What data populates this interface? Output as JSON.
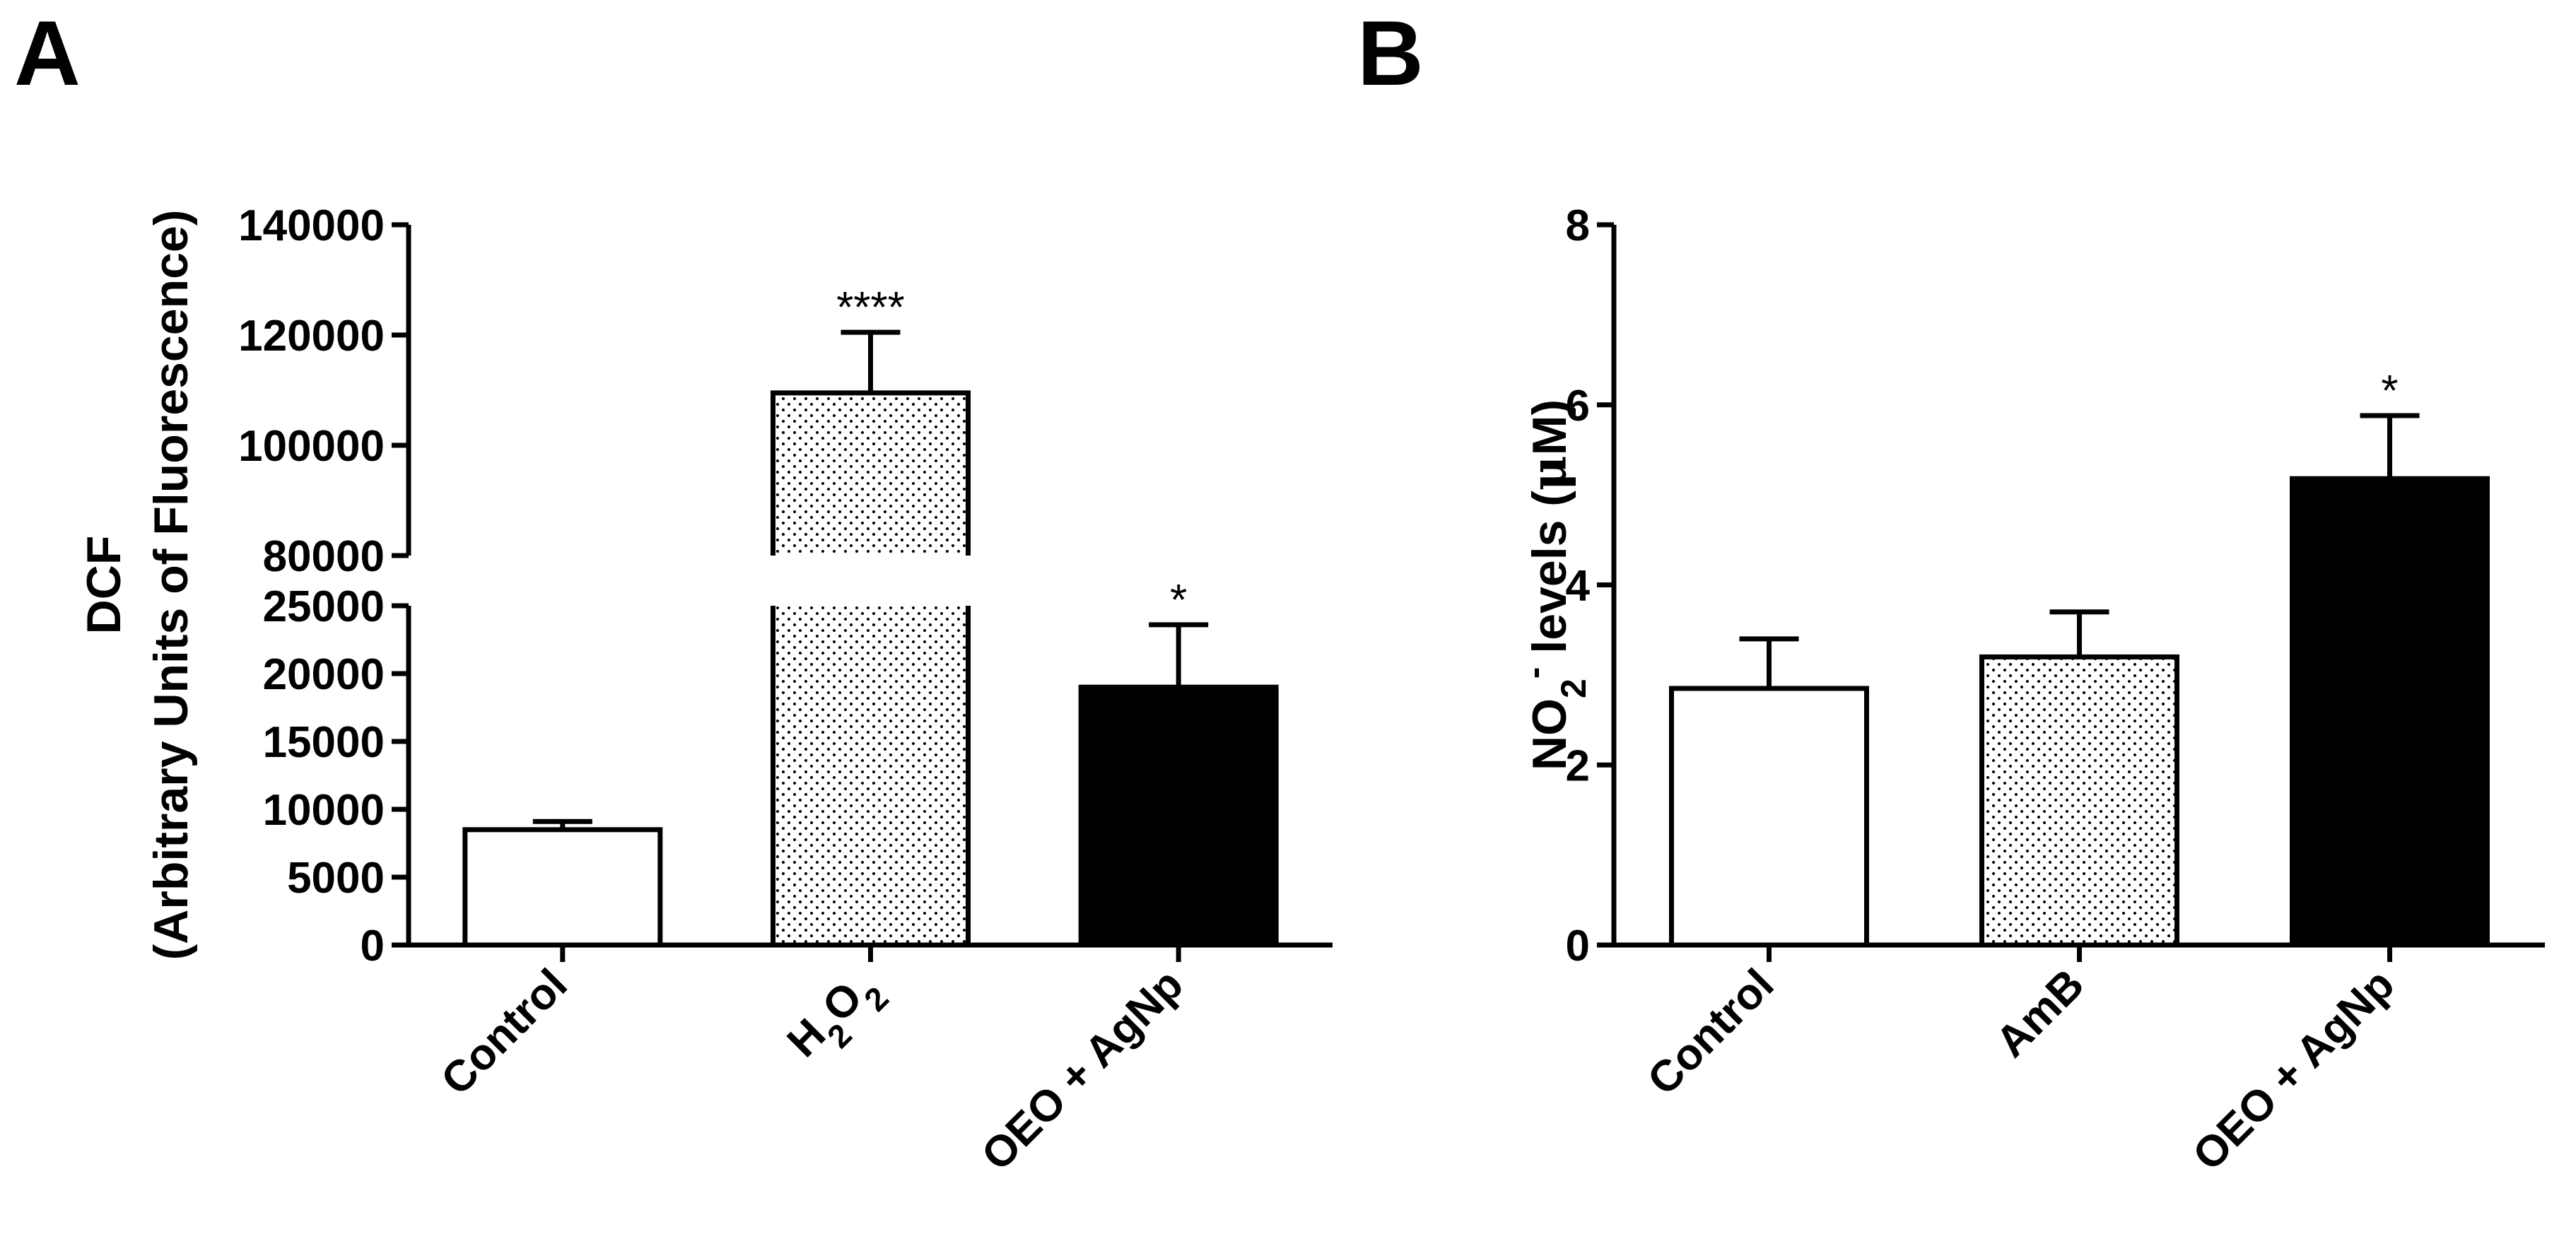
{
  "chart_data": [
    {
      "panel": "A",
      "type": "bar",
      "ylabel_lines": [
        "DCF",
        "(Arbitrary Units of Fluorescence)"
      ],
      "categories": [
        "Control",
        "H2O2",
        "OEO + AgNp"
      ],
      "category_display": [
        {
          "parts": [
            {
              "t": "Control"
            }
          ]
        },
        {
          "parts": [
            {
              "t": "H"
            },
            {
              "t": "2",
              "sub": true
            },
            {
              "t": "O"
            },
            {
              "t": "2",
              "sub": true
            }
          ]
        },
        {
          "parts": [
            {
              "t": "OEO + AgNp"
            }
          ]
        }
      ],
      "values": [
        8500,
        109500,
        19000
      ],
      "errors": [
        600,
        11000,
        4600
      ],
      "fills": [
        "white",
        "dotted",
        "black"
      ],
      "significance": [
        "",
        "****",
        "*"
      ],
      "axis_break": true,
      "lower_segment": {
        "ylim": [
          0,
          25000
        ],
        "ticks": [
          0,
          5000,
          10000,
          15000,
          20000,
          25000
        ]
      },
      "upper_segment": {
        "ylim": [
          80000,
          140000
        ],
        "ticks": [
          80000,
          100000,
          120000,
          140000
        ]
      }
    },
    {
      "panel": "B",
      "type": "bar",
      "ylabel": {
        "main": "NO",
        "sub": "2",
        "sup": "-",
        "rest": " levels (",
        "greek": "μ",
        "end": "M)"
      },
      "categories": [
        "Control",
        "AmB",
        "OEO + AgNp"
      ],
      "category_display": [
        {
          "parts": [
            {
              "t": "Control"
            }
          ]
        },
        {
          "parts": [
            {
              "t": "AmB"
            }
          ]
        },
        {
          "parts": [
            {
              "t": "OEO + AgNp"
            }
          ]
        }
      ],
      "values": [
        2.85,
        3.2,
        5.18
      ],
      "errors": [
        0.55,
        0.5,
        0.7
      ],
      "fills": [
        "white",
        "dotted",
        "black"
      ],
      "significance": [
        "",
        "",
        "*"
      ],
      "ylim": [
        0,
        8
      ],
      "ticks": [
        0,
        2,
        4,
        6,
        8
      ]
    }
  ]
}
